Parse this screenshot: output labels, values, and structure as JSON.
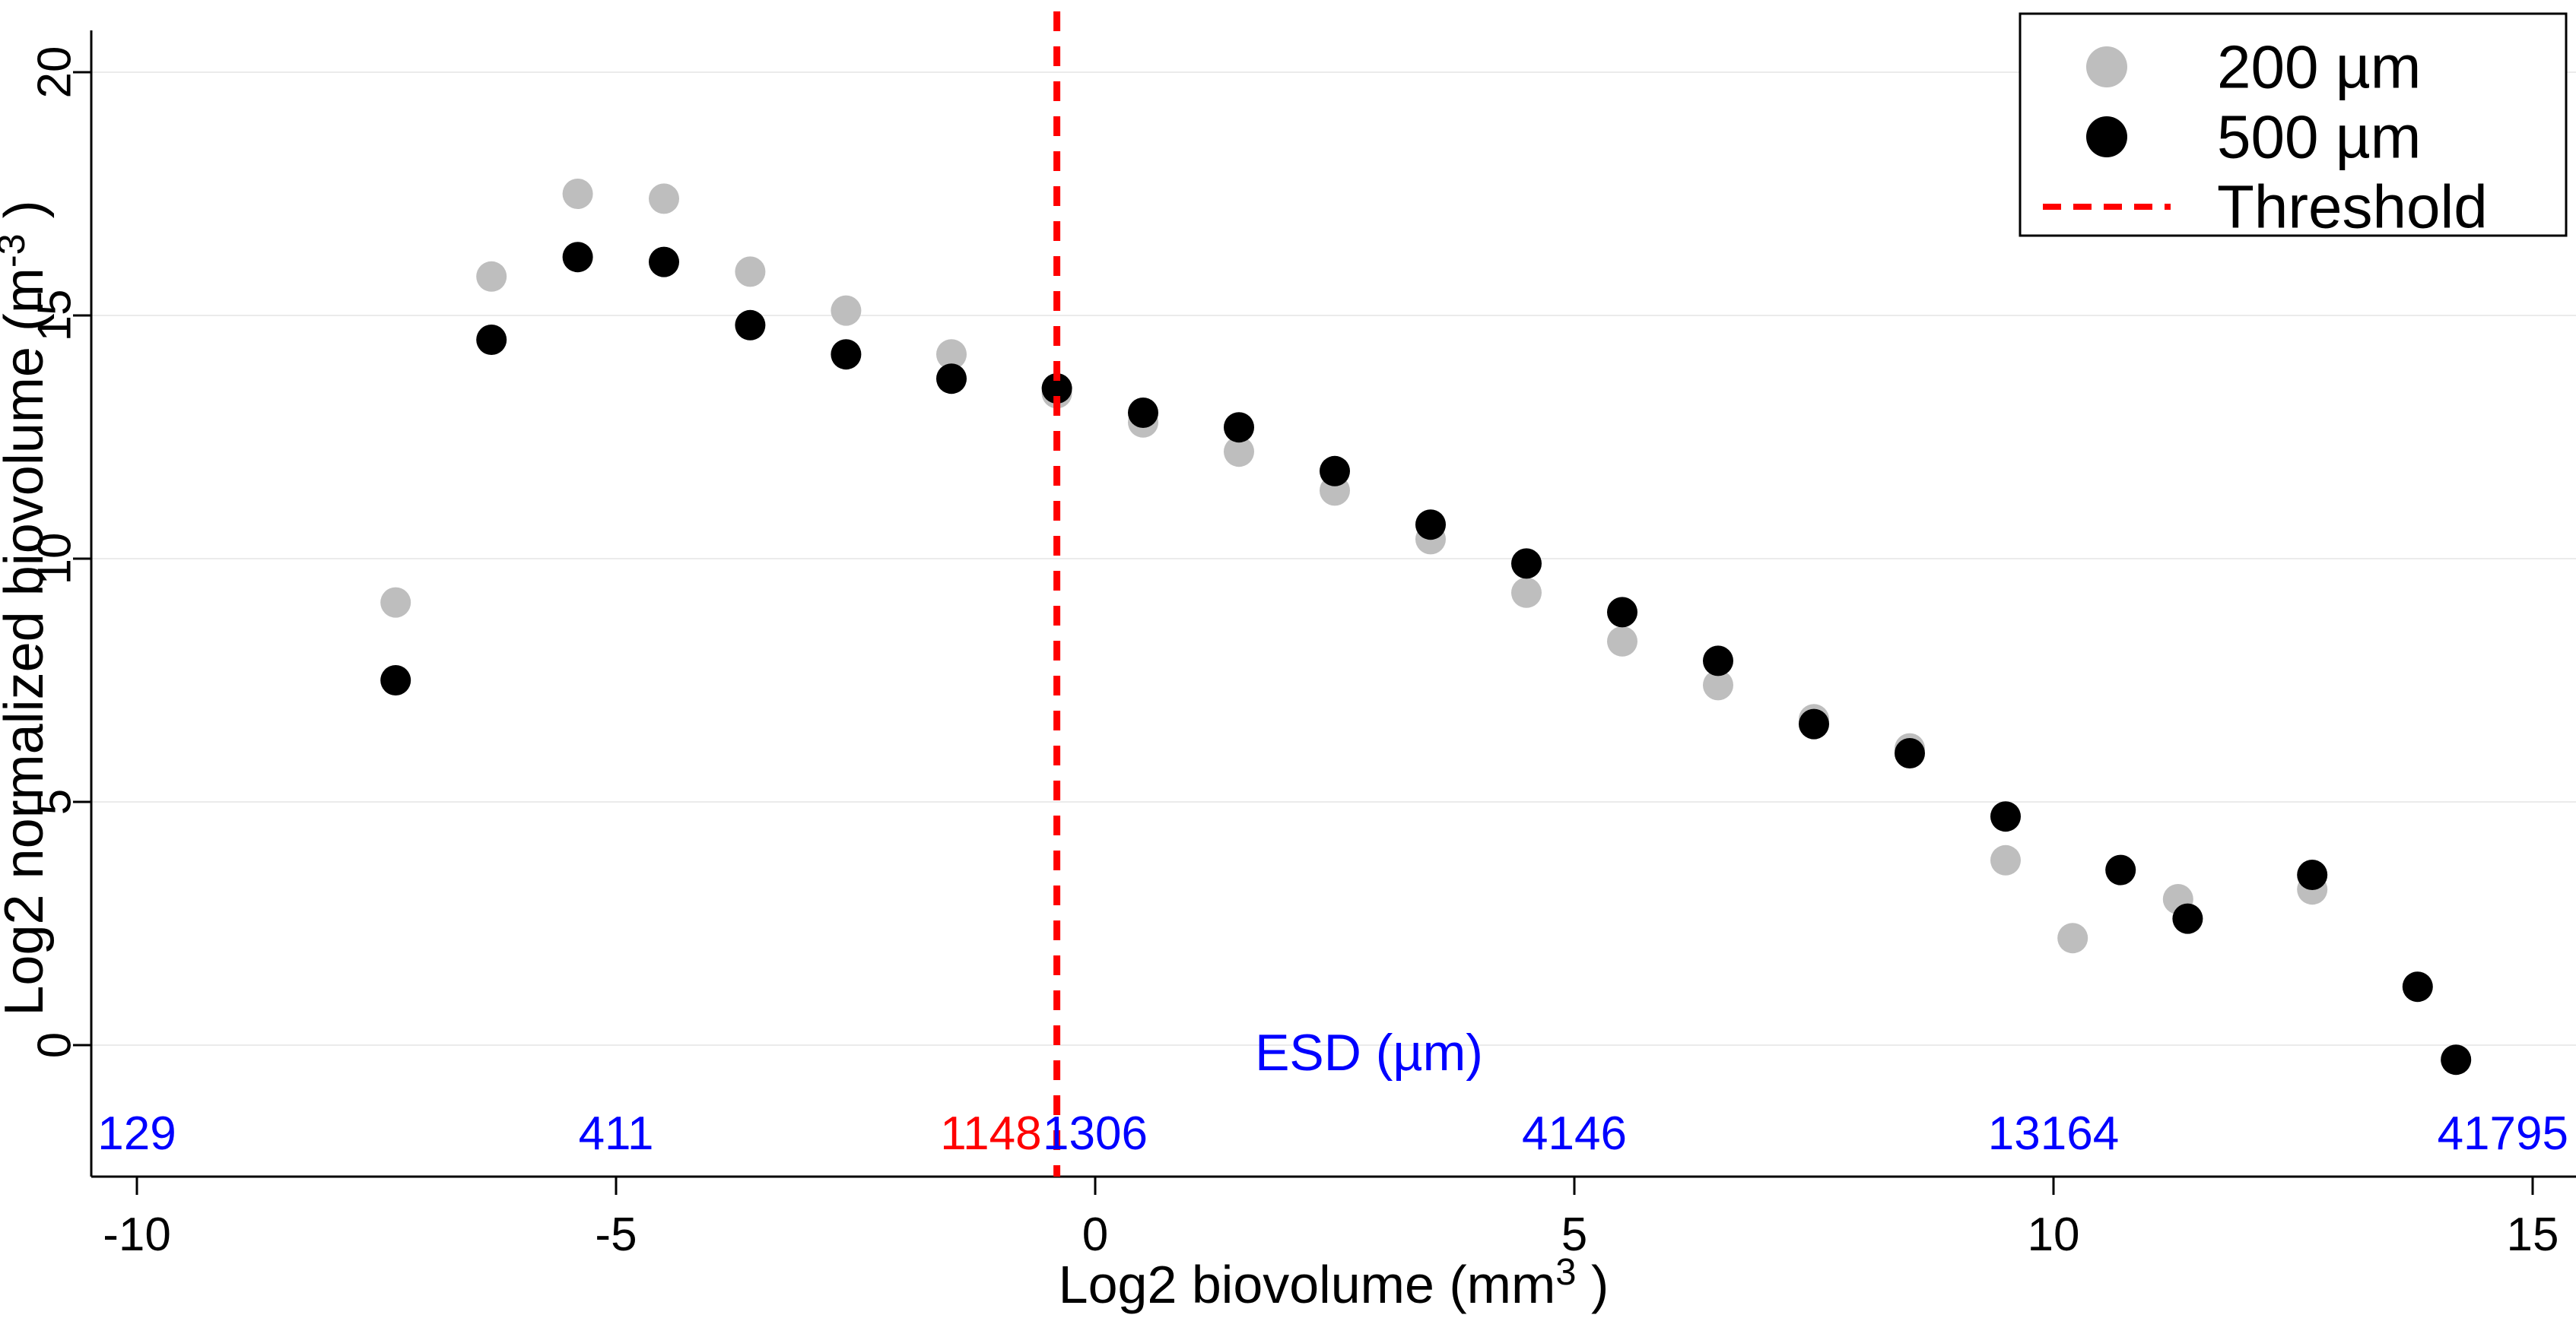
{
  "chart_data": {
    "type": "scatter",
    "title": "",
    "xlabel": {
      "base": "Log2 biovolume (mm",
      "sup": "3",
      "suffix": " )"
    },
    "ylabel": {
      "base": "Log2 normalized biovolume (m",
      "sup": "-3",
      "suffix": " )"
    },
    "xlim": [
      -10,
      15
    ],
    "ylim": [
      0,
      20
    ],
    "x_ticks": [
      -10,
      -5,
      0,
      5,
      10,
      15
    ],
    "y_ticks": [
      0,
      5,
      10,
      15,
      20
    ],
    "grid": "horizontal-light",
    "grid_color": "#ebebeb",
    "axis_color": "#000000",
    "threshold_x": -0.4,
    "threshold_color": "#ff0000",
    "esd_axis": {
      "label": "ESD (µm)",
      "color": "#0000ff",
      "ticks": [
        {
          "x": -10,
          "label": "129"
        },
        {
          "x": -5,
          "label": "411"
        },
        {
          "x": 0,
          "label": "1306"
        },
        {
          "x": 5,
          "label": "4146"
        },
        {
          "x": 10,
          "label": "13164"
        },
        {
          "x": 15,
          "label": "41795"
        }
      ],
      "threshold_label": {
        "x": -0.4,
        "label": "1148",
        "color": "#ff0000"
      }
    },
    "series": [
      {
        "name": "200 µm",
        "color": "#bebebe",
        "points": [
          [
            -7.3,
            9.1
          ],
          [
            -6.3,
            15.8
          ],
          [
            -5.4,
            17.5
          ],
          [
            -4.5,
            17.4
          ],
          [
            -3.6,
            15.9
          ],
          [
            -2.6,
            15.1
          ],
          [
            -1.5,
            14.2
          ],
          [
            -0.4,
            13.4
          ],
          [
            0.5,
            12.8
          ],
          [
            1.5,
            12.2
          ],
          [
            2.5,
            11.4
          ],
          [
            3.5,
            10.4
          ],
          [
            4.5,
            9.3
          ],
          [
            5.5,
            8.3
          ],
          [
            6.5,
            7.4
          ],
          [
            7.5,
            6.7
          ],
          [
            8.5,
            6.1
          ],
          [
            9.5,
            3.8
          ],
          [
            10.2,
            2.2
          ],
          [
            11.3,
            3.0
          ],
          [
            12.7,
            3.2
          ]
        ]
      },
      {
        "name": "500 µm",
        "color": "#000000",
        "points": [
          [
            -7.3,
            7.5
          ],
          [
            -6.3,
            14.5
          ],
          [
            -5.4,
            16.2
          ],
          [
            -4.5,
            16.1
          ],
          [
            -3.6,
            14.8
          ],
          [
            -2.6,
            14.2
          ],
          [
            -1.5,
            13.7
          ],
          [
            -0.4,
            13.5
          ],
          [
            0.5,
            13.0
          ],
          [
            1.5,
            12.7
          ],
          [
            2.5,
            11.8
          ],
          [
            3.5,
            10.7
          ],
          [
            4.5,
            9.9
          ],
          [
            5.5,
            8.9
          ],
          [
            6.5,
            7.9
          ],
          [
            7.5,
            6.6
          ],
          [
            8.5,
            6.0
          ],
          [
            9.5,
            4.7
          ],
          [
            10.7,
            3.6
          ],
          [
            11.4,
            2.6
          ],
          [
            12.7,
            3.5
          ],
          [
            13.8,
            1.2
          ],
          [
            14.2,
            -0.3
          ]
        ]
      }
    ],
    "legend": {
      "position": "top-right",
      "items": [
        {
          "label": "200 µm",
          "marker": "circle",
          "color": "#bebebe"
        },
        {
          "label": "500 µm",
          "marker": "circle",
          "color": "#000000"
        },
        {
          "label": "Threshold",
          "marker": "dashed-line",
          "color": "#ff0000"
        }
      ]
    }
  }
}
